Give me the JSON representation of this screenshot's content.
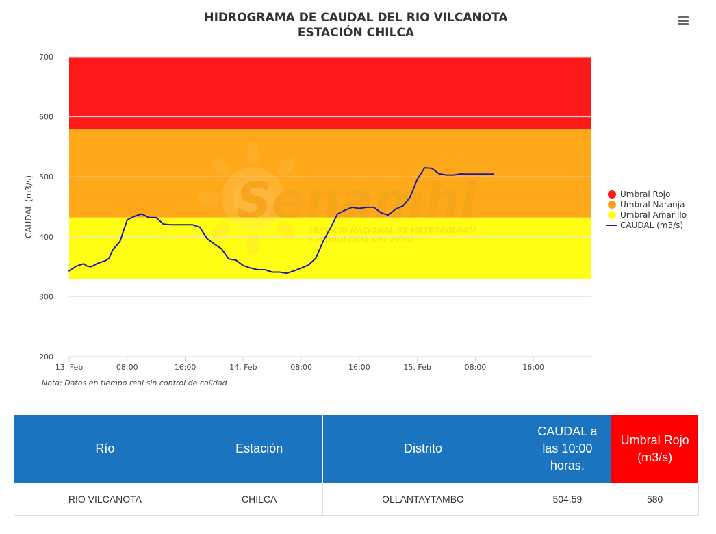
{
  "chart_title_line1": "HIDROGRAMA DE CAUDAL DEL RIO VILCANOTA",
  "chart_title_line2": "ESTACIÓN CHILCA",
  "watermark": {
    "brand": "Senamhi",
    "line1": "SERVICIO NACIONAL DE METEOROLOGÍA",
    "line2": "E HIDROLOGÍA DEL PERÚ"
  },
  "note": "Nota: Datos en tiempo real sin control de calidad",
  "colors": {
    "umbral_rojo": "#ff1a1a",
    "umbral_naranja": "#ffa81a",
    "umbral_amarillo": "#ffff14",
    "caudal_line": "#1a1aa6",
    "table_header": "#1a74c0",
    "table_header_red": "#ff0000"
  },
  "chart_data": {
    "type": "line",
    "ylabel": "CAUDAL (m3/s)",
    "ylim": [
      200,
      700
    ],
    "yticks": [
      "700",
      "600",
      "500",
      "400",
      "300",
      "200"
    ],
    "ytick_values": [
      700,
      600,
      500,
      400,
      300,
      200
    ],
    "xlim_hours": [
      0,
      72
    ],
    "xtick_labels": [
      "13. Feb",
      "08:00",
      "16:00",
      "14. Feb",
      "08:00",
      "16:00",
      "15. Feb",
      "08:00",
      "16:00"
    ],
    "xtick_hours": [
      0,
      8,
      16,
      24,
      32,
      40,
      48,
      56,
      64
    ],
    "bands": [
      {
        "name": "Umbral Rojo",
        "from": 580,
        "to": 700
      },
      {
        "name": "Umbral Naranja",
        "from": 432,
        "to": 580
      },
      {
        "name": "Umbral Amarillo",
        "from": 330,
        "to": 432
      }
    ],
    "legend": [
      "Umbral Rojo",
      "Umbral Naranja",
      "Umbral Amarillo",
      "CAUDAL (m3/s)"
    ],
    "legend_position": "right",
    "series": [
      {
        "name": "CAUDAL (m3/s)",
        "x_hours": [
          0,
          1,
          2,
          2.5,
          3,
          4,
          5,
          5.5,
          6,
          7,
          8,
          9,
          10,
          11,
          11.5,
          12,
          13,
          14,
          15,
          16,
          17,
          18,
          19,
          20,
          21,
          22,
          23,
          24,
          25,
          26,
          26.5,
          27,
          28,
          29,
          30,
          31,
          32,
          33,
          34,
          35,
          36,
          37,
          38,
          39,
          40,
          41,
          42,
          43,
          44,
          45,
          46,
          47,
          48,
          49,
          50,
          51,
          52,
          53,
          54,
          54.5,
          55,
          56,
          57,
          58,
          58.5
        ],
        "values": [
          343,
          351,
          355,
          351,
          350,
          356,
          360,
          364,
          378,
          392,
          428,
          434,
          438,
          432,
          432,
          432,
          421,
          420,
          420,
          420,
          420,
          416,
          397,
          388,
          380,
          363,
          361,
          352,
          348,
          345,
          345,
          345,
          341,
          341,
          339,
          343,
          348,
          353,
          364,
          392,
          414,
          438,
          444,
          449,
          447,
          449,
          449,
          440,
          436,
          446,
          451,
          466,
          496,
          515,
          514,
          505,
          503,
          503,
          505,
          504.59,
          504.59,
          504.59,
          504.59,
          504.59,
          504.59
        ]
      }
    ]
  },
  "table": {
    "headers": [
      "Río",
      "Estación",
      "Distrito",
      "CAUDAL a las 10:00 horas.",
      "Umbral Rojo (m3/s)"
    ],
    "row": [
      "RIO VILCANOTA",
      "CHILCA",
      "OLLANTAYTAMBO",
      "504.59",
      "580"
    ]
  }
}
